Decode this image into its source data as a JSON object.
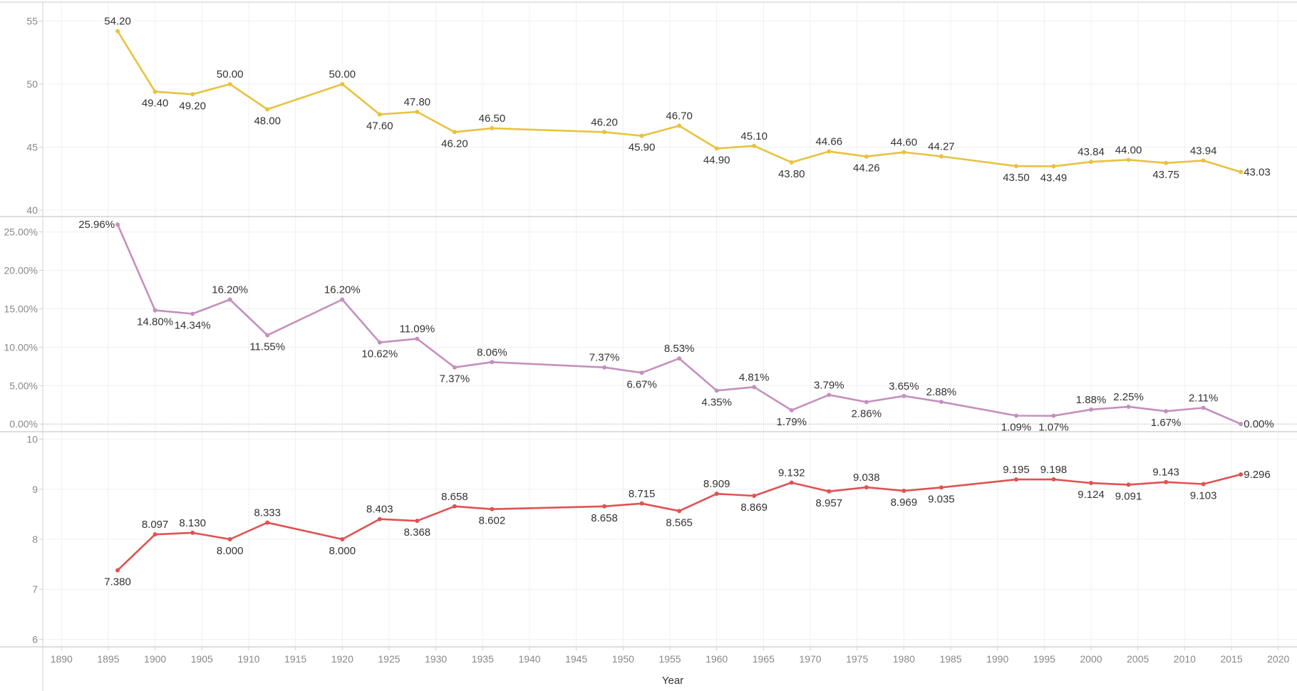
{
  "chart_data": {
    "type": "line",
    "xlabel": "Year",
    "xlim": [
      1888,
      2022
    ],
    "x_ticks": [
      1890,
      1895,
      1900,
      1905,
      1910,
      1915,
      1920,
      1925,
      1930,
      1935,
      1940,
      1945,
      1950,
      1955,
      1960,
      1965,
      1970,
      1975,
      1980,
      1985,
      1990,
      1995,
      2000,
      2005,
      2010,
      2015,
      2020
    ],
    "x": [
      1896,
      1900,
      1904,
      1908,
      1912,
      1920,
      1924,
      1928,
      1932,
      1936,
      1948,
      1952,
      1956,
      1960,
      1964,
      1968,
      1972,
      1976,
      1980,
      1984,
      1992,
      1996,
      2000,
      2004,
      2008,
      2012,
      2016
    ],
    "grid": true,
    "panels": [
      {
        "color": "#e8c240",
        "ylim": [
          39.5,
          56.5
        ],
        "y_ticks": [
          40,
          45,
          50,
          55
        ],
        "y_tick_labels": [
          "40",
          "45",
          "50",
          "55"
        ],
        "values": [
          54.2,
          49.4,
          49.2,
          50.0,
          48.0,
          50.0,
          47.6,
          47.8,
          46.2,
          46.5,
          46.2,
          45.9,
          46.7,
          44.9,
          45.1,
          43.8,
          44.66,
          44.26,
          44.6,
          44.27,
          43.5,
          43.49,
          43.84,
          44.0,
          43.75,
          43.94,
          43.03
        ],
        "labels": [
          "54.20",
          "49.40",
          "49.20",
          "50.00",
          "48.00",
          "50.00",
          "47.60",
          "47.80",
          "46.20",
          "46.50",
          "46.20",
          "45.90",
          "46.70",
          "44.90",
          "45.10",
          "43.80",
          "44.66",
          "44.26",
          "44.60",
          "44.27",
          "43.50",
          "43.49",
          "43.84",
          "44.00",
          "43.75",
          "43.94",
          "43.03"
        ]
      },
      {
        "color": "#c490be",
        "ylim": [
          -1.0,
          27.0
        ],
        "zero_line": true,
        "y_ticks": [
          0,
          5,
          10,
          15,
          20,
          25
        ],
        "y_tick_labels": [
          "0.00%",
          "5.00%",
          "10.00%",
          "15.00%",
          "20.00%",
          "25.00%"
        ],
        "values": [
          25.96,
          14.8,
          14.34,
          16.2,
          11.55,
          16.2,
          10.62,
          11.09,
          7.37,
          8.06,
          7.37,
          6.67,
          8.53,
          4.35,
          4.81,
          1.79,
          3.79,
          2.86,
          3.65,
          2.88,
          1.09,
          1.07,
          1.88,
          2.25,
          1.67,
          2.11,
          0.0
        ],
        "labels": [
          "25.96%",
          "14.80%",
          "14.34%",
          "16.20%",
          "11.55%",
          "16.20%",
          "10.62%",
          "11.09%",
          "7.37%",
          "8.06%",
          "7.37%",
          "6.67%",
          "8.53%",
          "4.35%",
          "4.81%",
          "1.79%",
          "3.79%",
          "2.86%",
          "3.65%",
          "2.88%",
          "1.09%",
          "1.07%",
          "1.88%",
          "2.25%",
          "1.67%",
          "2.11%",
          "0.00%"
        ]
      },
      {
        "color": "#e05252",
        "ylim": [
          5.85,
          10.15
        ],
        "y_ticks": [
          6,
          7,
          8,
          9,
          10
        ],
        "y_tick_labels": [
          "6",
          "7",
          "8",
          "9",
          "10"
        ],
        "values": [
          7.38,
          8.097,
          8.13,
          8.0,
          8.333,
          8.0,
          8.403,
          8.368,
          8.658,
          8.602,
          8.658,
          8.715,
          8.565,
          8.909,
          8.869,
          9.132,
          8.957,
          9.038,
          8.969,
          9.035,
          9.195,
          9.198,
          9.124,
          9.091,
          9.143,
          9.103,
          9.296
        ],
        "labels": [
          "7.380",
          "8.097",
          "8.130",
          "8.000",
          "8.333",
          "8.000",
          "8.403",
          "8.368",
          "8.658",
          "8.602",
          "8.658",
          "8.715",
          "8.565",
          "8.909",
          "8.869",
          "9.132",
          "8.957",
          "9.038",
          "8.969",
          "9.035",
          "9.195",
          "9.198",
          "9.124",
          "9.091",
          "9.143",
          "9.103",
          "9.296"
        ]
      }
    ]
  }
}
